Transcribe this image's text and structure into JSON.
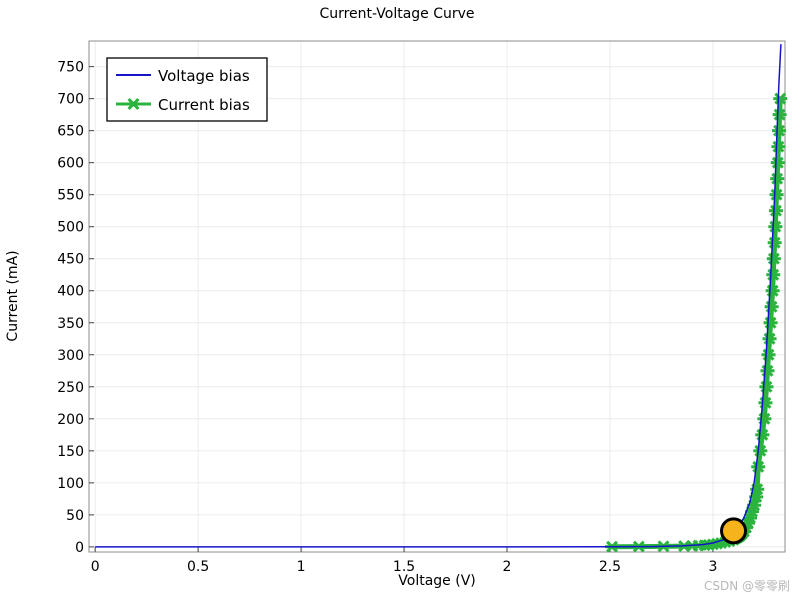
{
  "chart_data": {
    "type": "line",
    "title": "Current-Voltage Curve",
    "xlabel": "Voltage (V)",
    "ylabel": "Current (mA)",
    "xlim": [
      -0.03,
      3.35
    ],
    "ylim": [
      -8,
      790
    ],
    "x_ticks": [
      0,
      0.5,
      1,
      1.5,
      2,
      2.5,
      3
    ],
    "x_tick_labels": [
      "0",
      "0.5",
      "1",
      "1.5",
      "2",
      "2.5",
      "3"
    ],
    "y_ticks": [
      0,
      50,
      100,
      150,
      200,
      250,
      300,
      350,
      400,
      450,
      500,
      550,
      600,
      650,
      700,
      750
    ],
    "y_tick_labels": [
      "0",
      "50",
      "100",
      "150",
      "200",
      "250",
      "300",
      "350",
      "400",
      "450",
      "500",
      "550",
      "600",
      "650",
      "700",
      "750"
    ],
    "grid": true,
    "legend_position": "top-left",
    "series": [
      {
        "name": "Voltage bias",
        "color": "#1515c8",
        "style": "line",
        "points": [
          [
            0,
            0
          ],
          [
            0.5,
            0
          ],
          [
            1.0,
            0
          ],
          [
            1.5,
            0
          ],
          [
            2.0,
            0
          ],
          [
            2.5,
            0.2
          ],
          [
            2.7,
            0.5
          ],
          [
            2.85,
            1.5
          ],
          [
            2.95,
            3.5
          ],
          [
            3.0,
            6
          ],
          [
            3.05,
            11
          ],
          [
            3.1,
            22
          ],
          [
            3.15,
            45
          ],
          [
            3.18,
            70
          ],
          [
            3.2,
            100
          ],
          [
            3.22,
            150
          ],
          [
            3.24,
            220
          ],
          [
            3.26,
            310
          ],
          [
            3.28,
            420
          ],
          [
            3.3,
            550
          ],
          [
            3.31,
            640
          ],
          [
            3.32,
            720
          ],
          [
            3.33,
            785
          ]
        ]
      },
      {
        "name": "Current bias",
        "color": "#2ab43e",
        "style": "markers",
        "marker": "asterisk",
        "points": [
          [
            2.51,
            0.3
          ],
          [
            2.64,
            0.5
          ],
          [
            2.76,
            0.8
          ],
          [
            2.86,
            1.2
          ],
          [
            2.9,
            1.5
          ],
          [
            2.93,
            2
          ],
          [
            2.96,
            2.5
          ],
          [
            2.98,
            3
          ],
          [
            3.0,
            4
          ],
          [
            3.02,
            5
          ],
          [
            3.04,
            6
          ],
          [
            3.06,
            7.5
          ],
          [
            3.08,
            9
          ],
          [
            3.1,
            11
          ],
          [
            3.11,
            13
          ],
          [
            3.12,
            15
          ],
          [
            3.13,
            17
          ],
          [
            3.14,
            20
          ],
          [
            3.15,
            24
          ],
          [
            3.16,
            30
          ],
          [
            3.17,
            37
          ],
          [
            3.18,
            45
          ],
          [
            3.19,
            55
          ],
          [
            3.2,
            65
          ],
          [
            3.21,
            78
          ],
          [
            3.215,
            90
          ],
          [
            3.22,
            125
          ],
          [
            3.23,
            150
          ],
          [
            3.24,
            175
          ],
          [
            3.25,
            200
          ],
          [
            3.255,
            225
          ],
          [
            3.26,
            250
          ],
          [
            3.265,
            275
          ],
          [
            3.27,
            300
          ],
          [
            3.275,
            325
          ],
          [
            3.28,
            350
          ],
          [
            3.285,
            375
          ],
          [
            3.29,
            400
          ],
          [
            3.293,
            425
          ],
          [
            3.296,
            450
          ],
          [
            3.3,
            475
          ],
          [
            3.303,
            500
          ],
          [
            3.306,
            525
          ],
          [
            3.309,
            550
          ],
          [
            3.312,
            575
          ],
          [
            3.315,
            600
          ],
          [
            3.318,
            625
          ],
          [
            3.321,
            650
          ],
          [
            3.324,
            675
          ],
          [
            3.327,
            700
          ]
        ]
      }
    ],
    "annotations": [
      {
        "type": "circle-marker",
        "x": 3.1,
        "y": 25,
        "fill": "#f7b31b",
        "stroke": "#000000"
      }
    ]
  },
  "watermark": "CSDN @零零刷"
}
